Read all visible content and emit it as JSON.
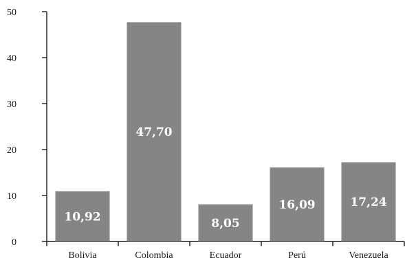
{
  "chart_data": {
    "type": "bar",
    "categories": [
      "Bolivia",
      "Colombia",
      "Ecuador",
      "Perú",
      "Venezuela"
    ],
    "values": [
      10.92,
      47.7,
      8.05,
      16.09,
      17.24
    ],
    "value_labels": [
      "10,92",
      "47,70",
      "8,05",
      "16,09",
      "17,24"
    ],
    "title": "",
    "xlabel": "",
    "ylabel": "",
    "ylim": [
      0,
      50
    ],
    "yticks": [
      0,
      10,
      20,
      30,
      40,
      50
    ],
    "ytick_labels": [
      "0",
      "10",
      "20",
      "30",
      "40",
      "50"
    ],
    "grid": false,
    "legend": "none",
    "colors": {
      "bar": "#858585",
      "bar_label": "#ffffff",
      "axis": "#1a1a1a"
    }
  }
}
